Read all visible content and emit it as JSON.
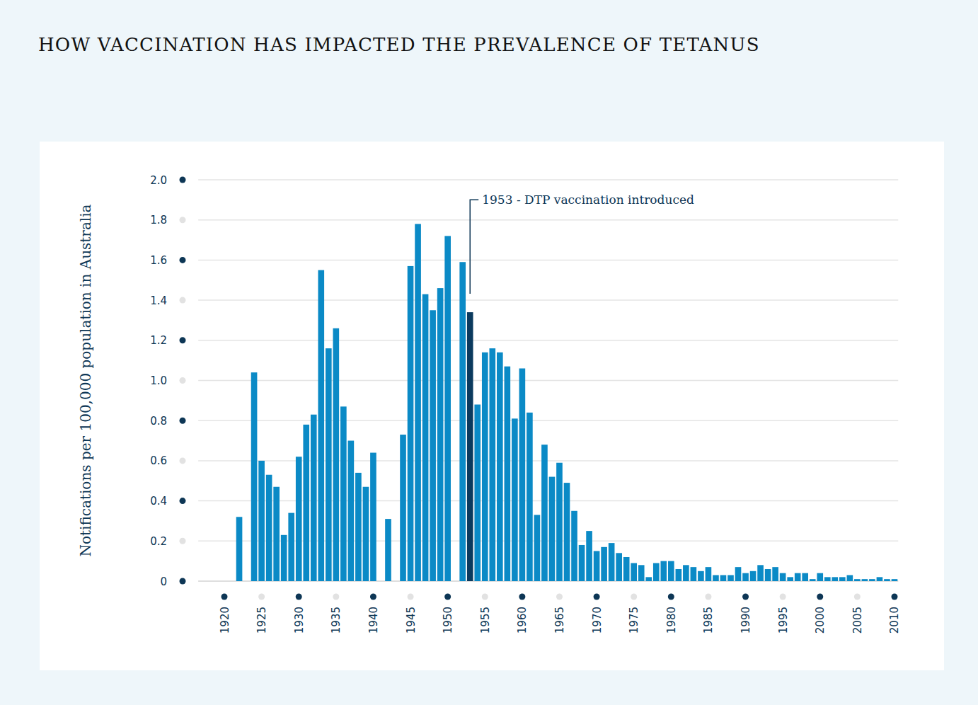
{
  "chart_data": {
    "type": "bar",
    "title": "HOW VACCINATION HAS IMPACTED THE PREVALENCE OF TETANUS",
    "y_label": "Notifications per 100,000 population in Australia",
    "x": [
      1920,
      1921,
      1922,
      1923,
      1924,
      1925,
      1926,
      1927,
      1928,
      1929,
      1930,
      1931,
      1932,
      1933,
      1934,
      1935,
      1936,
      1937,
      1938,
      1939,
      1940,
      1941,
      1942,
      1943,
      1944,
      1945,
      1946,
      1947,
      1948,
      1949,
      1950,
      1951,
      1952,
      1953,
      1954,
      1955,
      1956,
      1957,
      1958,
      1959,
      1960,
      1961,
      1962,
      1963,
      1964,
      1965,
      1966,
      1967,
      1968,
      1969,
      1970,
      1971,
      1972,
      1973,
      1974,
      1975,
      1976,
      1977,
      1978,
      1979,
      1980,
      1981,
      1982,
      1983,
      1984,
      1985,
      1986,
      1987,
      1988,
      1989,
      1990,
      1991,
      1992,
      1993,
      1994,
      1995,
      1996,
      1997,
      1998,
      1999,
      2000,
      2001,
      2002,
      2003,
      2004,
      2005,
      2006,
      2007,
      2008,
      2009,
      2010
    ],
    "values": [
      null,
      null,
      0.32,
      null,
      1.04,
      0.6,
      0.53,
      0.47,
      0.23,
      0.34,
      0.62,
      0.78,
      0.83,
      1.55,
      1.16,
      1.26,
      0.87,
      0.7,
      0.54,
      0.47,
      0.64,
      null,
      0.31,
      null,
      0.73,
      1.57,
      1.78,
      1.43,
      1.35,
      1.46,
      1.72,
      null,
      1.59,
      1.34,
      0.88,
      1.14,
      1.16,
      1.14,
      1.07,
      0.81,
      1.06,
      0.84,
      0.33,
      0.68,
      0.52,
      0.59,
      0.49,
      0.35,
      0.18,
      0.25,
      0.15,
      0.17,
      0.19,
      0.14,
      0.12,
      0.09,
      0.08,
      0.02,
      0.09,
      0.1,
      0.1,
      0.06,
      0.08,
      0.07,
      0.05,
      0.07,
      0.03,
      0.03,
      0.03,
      0.07,
      0.04,
      0.05,
      0.08,
      0.06,
      0.07,
      0.04,
      0.02,
      0.04,
      0.04,
      0.01,
      0.04,
      0.02,
      0.02,
      0.02,
      0.03,
      0.01,
      0.01,
      0.01,
      0.02,
      0.01,
      0.01
    ],
    "colors": [
      "#0b8ac6",
      "#0b8ac6",
      "#0b8ac6",
      "#0b8ac6",
      "#0b8ac6",
      "#0b8ac6",
      "#0b8ac6",
      "#0b8ac6",
      "#0b8ac6",
      "#0b8ac6",
      "#0b8ac6",
      "#0b8ac6",
      "#0b8ac6",
      "#0b8ac6",
      "#0b8ac6",
      "#0b8ac6",
      "#0b8ac6",
      "#0b8ac6",
      "#0b8ac6",
      "#0b8ac6",
      "#0b8ac6",
      "#0b8ac6",
      "#0b8ac6",
      "#0b8ac6",
      "#0b8ac6",
      "#0b8ac6",
      "#0b8ac6",
      "#0b8ac6",
      "#0b8ac6",
      "#0b8ac6",
      "#0b8ac6",
      "#0b8ac6",
      "#0b8ac6",
      "#0b3a5e",
      "#0b8ac6",
      "#0b8ac6",
      "#0b8ac6",
      "#0b8ac6",
      "#0b8ac6",
      "#0b8ac6",
      "#0b8ac6",
      "#0b8ac6",
      "#0b8ac6",
      "#0b8ac6",
      "#0b8ac6",
      "#0b8ac6",
      "#0b8ac6",
      "#0b8ac6",
      "#0b8ac6",
      "#0b8ac6",
      "#0b8ac6",
      "#0b8ac6",
      "#0b8ac6",
      "#0b8ac6",
      "#0b8ac6",
      "#0b8ac6",
      "#0b8ac6",
      "#0b8ac6",
      "#0b8ac6",
      "#0b8ac6",
      "#0b8ac6",
      "#0b8ac6",
      "#0b8ac6",
      "#0b8ac6",
      "#0b8ac6",
      "#0b8ac6",
      "#0b8ac6",
      "#0b8ac6",
      "#0b8ac6",
      "#0b8ac6",
      "#0b8ac6",
      "#0b8ac6",
      "#0b8ac6",
      "#0b8ac6",
      "#0b8ac6",
      "#0b8ac6",
      "#0b8ac6",
      "#0b8ac6",
      "#0b8ac6",
      "#0b8ac6",
      "#0b8ac6",
      "#0b8ac6",
      "#0b8ac6",
      "#0b8ac6",
      "#0b8ac6",
      "#0b8ac6",
      "#0b8ac6",
      "#0b8ac6",
      "#0b8ac6",
      "#0b8ac6",
      "#0b8ac6"
    ],
    "xlim": [
      1916.5,
      2010.5
    ],
    "xticks": [
      1920,
      1925,
      1930,
      1935,
      1940,
      1945,
      1950,
      1955,
      1960,
      1965,
      1970,
      1975,
      1980,
      1985,
      1990,
      1995,
      2000,
      2005,
      2010
    ],
    "ylim": [
      0,
      2.0
    ],
    "yticks": [
      0,
      0.2,
      0.4,
      0.6,
      0.8,
      {
        "value": 1.0,
        "label": "1.0"
      },
      1.2,
      1.4,
      1.6,
      1.8,
      {
        "value": 2.0,
        "label": "2.0"
      }
    ],
    "grid": true,
    "annotations": [
      {
        "text": "1953 - DTP vaccination introduced",
        "x": 1953,
        "y": 1.9
      }
    ]
  }
}
